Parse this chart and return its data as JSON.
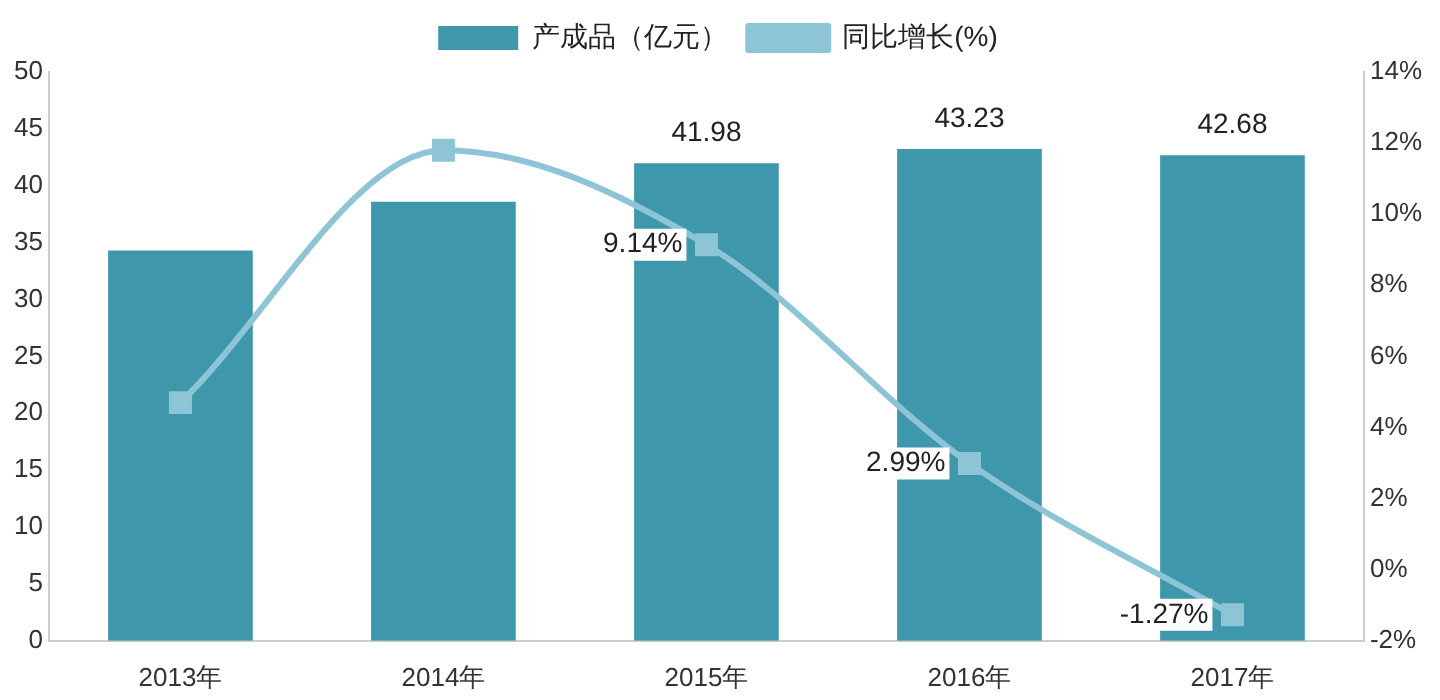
{
  "chart_data": {
    "type": "bar",
    "categories": [
      "2013年",
      "2014年",
      "2015年",
      "2016年",
      "2017年"
    ],
    "series": [
      {
        "name": "产成品（亿元）",
        "color": "#3e97ab",
        "values": [
          34.3,
          38.6,
          41.98,
          43.23,
          42.68
        ],
        "value_labels": [
          null,
          null,
          "41.98",
          "43.23",
          "42.68"
        ]
      },
      {
        "name": "同比增长(%)",
        "type": "line",
        "axis": "y2",
        "color": "#8ec5d6",
        "marker": "square",
        "values": [
          4.7,
          11.8,
          9.14,
          2.99,
          -1.27
        ],
        "value_labels": [
          null,
          null,
          "9.14%",
          "2.99%",
          "-1.27%"
        ]
      }
    ],
    "ylim": [
      0,
      50
    ],
    "yticks": [
      0,
      5,
      10,
      15,
      20,
      25,
      30,
      35,
      40,
      45,
      50
    ],
    "y2lim": [
      -2,
      14
    ],
    "y2ticks": [
      {
        "value": -2,
        "label": "-2%"
      },
      {
        "value": 0,
        "label": "0%"
      },
      {
        "value": 2,
        "label": "2%"
      },
      {
        "value": 4,
        "label": "4%"
      },
      {
        "value": 6,
        "label": "6%"
      },
      {
        "value": 8,
        "label": "8%"
      },
      {
        "value": 10,
        "label": "10%"
      },
      {
        "value": 12,
        "label": "12%"
      },
      {
        "value": 14,
        "label": "14%"
      }
    ],
    "legend": "top",
    "grid": false
  }
}
